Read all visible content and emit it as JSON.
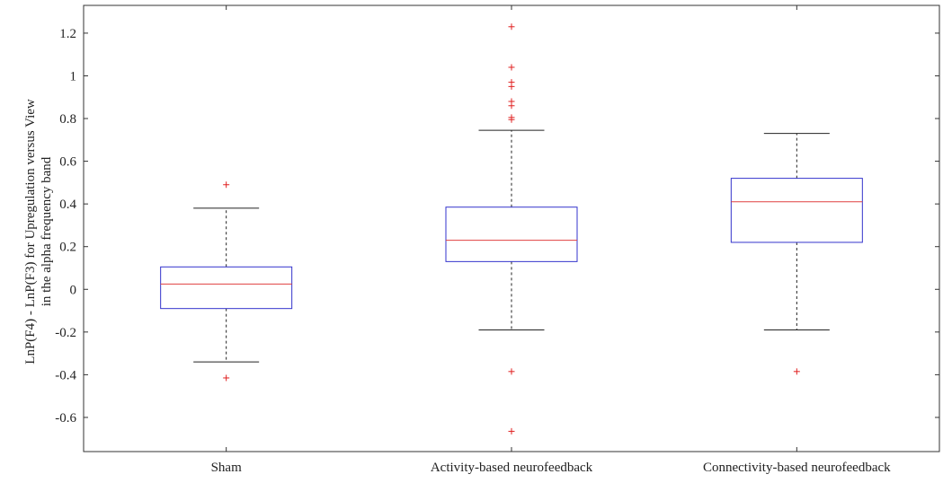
{
  "chart_data": {
    "type": "boxplot",
    "categories": [
      "Sham",
      "Activity-based neurofeedback",
      "Connectivity-based neurofeedback"
    ],
    "ylabel": "LnP(F4) - LnP(F3) for Upregulation versus View",
    "ylabel2": "in the alpha frequency band",
    "ylim": [
      -0.76,
      1.33
    ],
    "yticks": [
      -0.6,
      -0.4,
      -0.2,
      0,
      0.2,
      0.4,
      0.6,
      0.8,
      1,
      1.2
    ],
    "ytick_labels": [
      "-0.6",
      "-0.4",
      "-0.2",
      "0",
      "0.2",
      "0.4",
      "0.6",
      "0.8",
      "1",
      "1.2"
    ],
    "grid": false,
    "boxes": [
      {
        "whisker_low": -0.34,
        "q1": -0.09,
        "median": 0.025,
        "q3": 0.105,
        "whisker_high": 0.38,
        "outliers": [
          0.49,
          -0.415
        ]
      },
      {
        "whisker_low": -0.19,
        "q1": 0.13,
        "median": 0.23,
        "q3": 0.385,
        "whisker_high": 0.745,
        "outliers": [
          1.23,
          1.04,
          0.97,
          0.95,
          0.88,
          0.86,
          0.805,
          0.795,
          -0.385,
          -0.665
        ]
      },
      {
        "whisker_low": -0.19,
        "q1": 0.22,
        "median": 0.41,
        "q3": 0.52,
        "whisker_high": 0.73,
        "outliers": [
          -0.385
        ]
      }
    ],
    "colors": {
      "box": "#3333cc",
      "median": "#e04040",
      "whisker": "#222222",
      "outlier": "#e02020",
      "axis": "#333333"
    }
  }
}
